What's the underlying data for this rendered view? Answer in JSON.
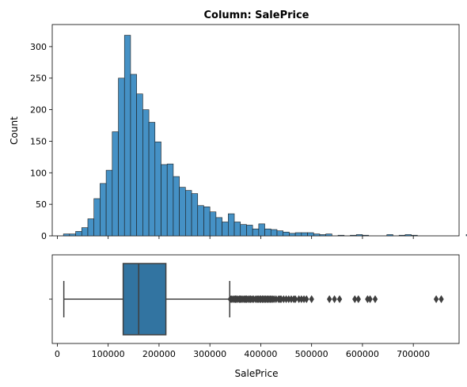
{
  "title": "Column: SalePrice",
  "chart_data": [
    {
      "type": "bar",
      "subtype": "histogram",
      "title": "Column: SalePrice",
      "xlabel": "",
      "ylabel": "Count",
      "xlim": [
        -10000,
        790000
      ],
      "ylim": [
        0,
        335
      ],
      "yticks": [
        0,
        50,
        100,
        150,
        200,
        250,
        300
      ],
      "ytick_labels": [
        "0",
        "50",
        "100",
        "150",
        "200",
        "250",
        "300"
      ],
      "xticks": [
        0,
        100000,
        200000,
        300000,
        400000,
        500000,
        600000,
        700000
      ],
      "xtick_labels_shown": false,
      "bin_width": 12000,
      "bin_start": 12000,
      "counts": [
        3,
        3,
        7,
        13,
        27,
        59,
        83,
        104,
        165,
        250,
        318,
        256,
        225,
        200,
        180,
        149,
        113,
        114,
        94,
        77,
        72,
        67,
        48,
        46,
        38,
        29,
        22,
        35,
        22,
        18,
        17,
        11,
        19,
        11,
        10,
        8,
        6,
        4,
        5,
        5,
        5,
        3,
        2,
        3,
        0,
        1,
        0,
        1,
        2,
        1,
        0,
        0,
        0,
        2,
        0,
        1,
        2,
        1,
        0,
        0,
        0,
        0,
        0,
        0,
        0,
        0,
        2
      ],
      "colors": {
        "bar": "#3b8bc2",
        "edge": "#1c1c1c"
      },
      "grid": false
    },
    {
      "type": "box",
      "xlabel": "SalePrice",
      "xlim": [
        -10000,
        790000
      ],
      "xticks": [
        0,
        100000,
        200000,
        300000,
        400000,
        500000,
        600000,
        700000
      ],
      "xtick_labels": [
        "0",
        "100000",
        "200000",
        "300000",
        "400000",
        "500000",
        "600000",
        "700000"
      ],
      "whisker_low": 12789,
      "q1": 129500,
      "median": 160000,
      "q3": 213500,
      "whisker_high": 339000,
      "outliers": [
        340000,
        342000,
        345000,
        348000,
        350000,
        352000,
        355000,
        358000,
        360000,
        362000,
        365000,
        368000,
        370000,
        372000,
        375000,
        378000,
        380000,
        383000,
        386000,
        390000,
        393000,
        395000,
        398000,
        400000,
        403000,
        405000,
        408000,
        410000,
        413000,
        415000,
        418000,
        420000,
        423000,
        426000,
        430000,
        435000,
        438000,
        440000,
        445000,
        450000,
        455000,
        460000,
        465000,
        468000,
        475000,
        480000,
        485000,
        490000,
        500000,
        535000,
        545000,
        555000,
        585000,
        592000,
        610000,
        615000,
        625000,
        745000,
        755000
      ],
      "colors": {
        "box": "#3274a1",
        "line": "#3f3f3f"
      }
    }
  ]
}
